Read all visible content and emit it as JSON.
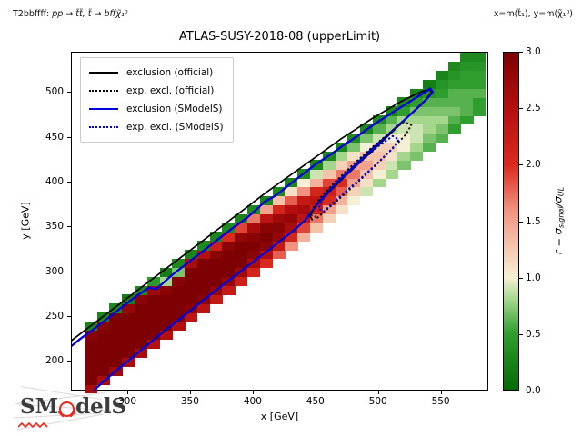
{
  "header": {
    "left_prefix": "T2bbffff: ",
    "left_math": "pp → t̃t̃,  t̃ → bffχ̃₁⁰",
    "right": "x=m(t̃₁), y=m(χ̃₁⁰)"
  },
  "title": "ATLAS-SUSY-2018-08 (upperLimit)",
  "legend": {
    "entries": [
      {
        "label": "exclusion (official)",
        "color": "#000000",
        "style": "solid"
      },
      {
        "label": "exp. excl. (official)",
        "color": "#000000",
        "style": "dotted"
      },
      {
        "label": "exclusion (SModelS)",
        "color": "#0000dd",
        "style": "solid"
      },
      {
        "label": "exp. excl. (SModelS)",
        "color": "#0000dd",
        "style": "dotted"
      }
    ]
  },
  "logo": {
    "text_left": "SM",
    "text_right": "delS",
    "accent_color": "#e8291c",
    "text_color": "#3c3c3c"
  },
  "chart_data": {
    "type": "heatmap",
    "title": "ATLAS-SUSY-2018-08 (upperLimit)",
    "xlabel": "x [GeV]",
    "ylabel": "y [GeV]",
    "xlim": [
      255,
      588
    ],
    "ylim": [
      167,
      545
    ],
    "xticks": [
      300,
      350,
      400,
      450,
      500,
      550
    ],
    "yticks": [
      200,
      250,
      300,
      350,
      400,
      450,
      500
    ],
    "grid": false,
    "legend_position": "upper left",
    "cell_size_gev": 10,
    "colorbar": {
      "range": [
        0.0,
        3.0
      ],
      "ticks": [
        "0.0",
        "0.5",
        "1.0",
        "1.5",
        "2.0",
        "2.5",
        "3.0"
      ],
      "tick_values": [
        0.0,
        0.5,
        1.0,
        1.5,
        2.0,
        2.5,
        3.0
      ],
      "label_parts": {
        "prefix": "r = σ",
        "sub1": "signal",
        "mid": "/σ",
        "sub2": "UL"
      },
      "stops": [
        [
          0.0,
          "#046b04"
        ],
        [
          0.5,
          "#2f9e2f"
        ],
        [
          0.8,
          "#a4d68c"
        ],
        [
          1.0,
          "#f5f0d5"
        ],
        [
          1.3,
          "#f5c2aa"
        ],
        [
          1.6,
          "#f29280"
        ],
        [
          2.0,
          "#da2a1e"
        ],
        [
          2.5,
          "#b40f0f"
        ],
        [
          3.0,
          "#7d0102"
        ]
      ]
    },
    "columns": [
      {
        "x": 270,
        "y0": 170,
        "r": [
          2.6,
          3.0,
          3.0,
          3.0,
          3.0,
          3.0,
          2.9,
          0.25
        ]
      },
      {
        "x": 280,
        "y0": 180,
        "r": [
          2.6,
          3.0,
          3.0,
          3.0,
          3.0,
          3.0,
          2.9,
          0.25
        ]
      },
      {
        "x": 290,
        "y0": 190,
        "r": [
          2.7,
          3.0,
          3.0,
          3.0,
          3.0,
          3.0,
          3.0,
          0.3
        ]
      },
      {
        "x": 300,
        "y0": 200,
        "r": [
          2.6,
          3.0,
          3.0,
          3.0,
          3.0,
          3.0,
          2.8,
          0.2
        ]
      },
      {
        "x": 310,
        "y0": 210,
        "r": [
          2.6,
          3.0,
          3.0,
          3.0,
          3.0,
          3.0,
          2.9,
          0.3
        ]
      },
      {
        "x": 320,
        "y0": 220,
        "r": [
          2.5,
          3.0,
          3.0,
          3.0,
          3.0,
          3.0,
          2.7,
          0.45
        ]
      },
      {
        "x": 330,
        "y0": 230,
        "r": [
          2.5,
          3.0,
          3.0,
          3.0,
          3.0,
          2.9,
          0.8,
          0.2
        ]
      },
      {
        "x": 340,
        "y0": 240,
        "r": [
          2.5,
          3.0,
          3.0,
          3.0,
          3.0,
          2.9,
          0.7,
          0.3
        ]
      },
      {
        "x": 350,
        "y0": 250,
        "r": [
          2.4,
          2.9,
          3.0,
          3.0,
          3.0,
          3.0,
          2.6,
          0.25
        ]
      },
      {
        "x": 360,
        "y0": 260,
        "r": [
          2.4,
          2.9,
          3.0,
          3.0,
          3.0,
          3.0,
          2.5,
          0.3
        ]
      },
      {
        "x": 370,
        "y0": 270,
        "r": [
          2.3,
          2.8,
          3.0,
          3.0,
          3.0,
          2.9,
          2.2,
          0.25
        ]
      },
      {
        "x": 380,
        "y0": 280,
        "r": [
          2.3,
          2.8,
          3.0,
          3.0,
          3.0,
          2.9,
          2.0,
          0.3
        ]
      },
      {
        "x": 390,
        "y0": 290,
        "r": [
          2.2,
          2.7,
          3.0,
          3.0,
          3.0,
          2.8,
          1.9,
          0.25
        ]
      },
      {
        "x": 400,
        "y0": 300,
        "r": [
          2.1,
          2.6,
          2.9,
          3.0,
          2.9,
          2.6,
          1.7,
          0.3
        ]
      },
      {
        "x": 410,
        "y0": 310,
        "r": [
          2.0,
          2.5,
          2.9,
          3.0,
          2.9,
          2.4,
          1.5,
          0.25
        ]
      },
      {
        "x": 420,
        "y0": 320,
        "r": [
          1.8,
          2.3,
          2.8,
          2.9,
          2.7,
          2.1,
          1.3,
          0.3
        ]
      },
      {
        "x": 430,
        "y0": 330,
        "r": [
          1.6,
          2.1,
          2.6,
          2.8,
          2.5,
          1.8,
          1.1,
          0.25
        ]
      },
      {
        "x": 440,
        "y0": 340,
        "r": [
          1.4,
          1.9,
          2.4,
          2.6,
          2.3,
          1.6,
          1.0,
          0.3
        ]
      },
      {
        "x": 450,
        "y0": 350,
        "r": [
          1.3,
          1.7,
          2.2,
          2.4,
          2.1,
          1.4,
          0.9,
          0.25
        ]
      },
      {
        "x": 460,
        "y0": 360,
        "r": [
          1.2,
          1.5,
          2.0,
          2.2,
          1.9,
          1.3,
          0.8,
          0.3
        ]
      },
      {
        "x": 470,
        "y0": 370,
        "r": [
          1.1,
          1.4,
          1.8,
          2.0,
          1.7,
          1.2,
          0.8,
          0.25
        ]
      },
      {
        "x": 480,
        "y0": 380,
        "r": [
          1.0,
          1.2,
          1.5,
          1.7,
          1.5,
          1.1,
          0.7,
          0.3
        ]
      },
      {
        "x": 490,
        "y0": 390,
        "r": [
          0.9,
          1.1,
          1.3,
          1.5,
          1.3,
          1.0,
          0.7,
          0.25
        ]
      },
      {
        "x": 500,
        "y0": 400,
        "r": [
          0.8,
          1.0,
          1.2,
          1.3,
          1.2,
          0.9,
          0.6,
          0.3
        ]
      },
      {
        "x": 510,
        "y0": 410,
        "r": [
          0.8,
          0.9,
          1.1,
          1.2,
          1.0,
          0.8,
          0.6,
          0.25
        ]
      },
      {
        "x": 520,
        "y0": 420,
        "r": [
          0.7,
          0.8,
          1.0,
          1.0,
          0.9,
          0.8,
          0.5,
          0.3
        ]
      },
      {
        "x": 530,
        "y0": 430,
        "r": [
          0.7,
          0.8,
          0.9,
          0.9,
          0.8,
          0.7,
          0.5,
          0.25
        ]
      },
      {
        "x": 540,
        "y0": 440,
        "r": [
          0.6,
          0.7,
          0.8,
          0.8,
          0.7,
          0.6,
          0.4,
          0.2
        ]
      },
      {
        "x": 550,
        "y0": 450,
        "r": [
          0.6,
          0.7,
          0.8,
          0.7,
          0.6,
          0.5,
          0.4,
          0.25
        ]
      },
      {
        "x": 560,
        "y0": 460,
        "r": [
          0.5,
          0.6,
          0.7,
          0.6,
          0.6,
          0.5,
          0.4,
          0.3
        ]
      },
      {
        "x": 570,
        "y0": 470,
        "r": [
          0.5,
          0.6,
          0.6,
          0.6,
          0.5,
          0.5,
          0.4,
          0.3
        ]
      },
      {
        "x": 580,
        "y0": 480,
        "r": [
          0.5,
          0.5,
          0.6,
          0.5,
          0.5,
          0.4,
          0.3
        ]
      }
    ],
    "contours": [
      {
        "name": "exclusion-official",
        "color": "#000000",
        "style": "solid",
        "width": 1.7,
        "points": [
          [
            254,
            223
          ],
          [
            268,
            238
          ],
          [
            284,
            255
          ],
          [
            300,
            272
          ],
          [
            316,
            289
          ],
          [
            332,
            306
          ],
          [
            348,
            323
          ],
          [
            364,
            340
          ],
          [
            380,
            357
          ],
          [
            396,
            374
          ],
          [
            410,
            389
          ],
          [
            422,
            401
          ],
          [
            434,
            413
          ],
          [
            446,
            425
          ],
          [
            458,
            437
          ],
          [
            470,
            449
          ],
          [
            482,
            460
          ],
          [
            494,
            471
          ],
          [
            506,
            481
          ],
          [
            517,
            490
          ],
          [
            527,
            497
          ],
          [
            535,
            502
          ],
          [
            540,
            504
          ],
          [
            542,
            501
          ],
          [
            537,
            492
          ],
          [
            528,
            480
          ],
          [
            517,
            465
          ],
          [
            505,
            449
          ],
          [
            492,
            432
          ],
          [
            479,
            415
          ],
          [
            467,
            399
          ],
          [
            457,
            385
          ],
          [
            449,
            373
          ],
          [
            445,
            363
          ],
          [
            447,
            358
          ]
        ]
      },
      {
        "name": "exclusion-smodels",
        "color": "#0000dd",
        "style": "solid",
        "width": 2.3,
        "points": [
          [
            254,
            217
          ],
          [
            262,
            226
          ],
          [
            272,
            236
          ],
          [
            283,
            248
          ],
          [
            295,
            261
          ],
          [
            307,
            274
          ],
          [
            317,
            283
          ],
          [
            322,
            281
          ],
          [
            327,
            287
          ],
          [
            335,
            297
          ],
          [
            347,
            310
          ],
          [
            359,
            323
          ],
          [
            371,
            336
          ],
          [
            383,
            349
          ],
          [
            394,
            360
          ],
          [
            403,
            371
          ],
          [
            409,
            379
          ],
          [
            417,
            385
          ],
          [
            427,
            396
          ],
          [
            438,
            408
          ],
          [
            450,
            421
          ],
          [
            462,
            432
          ],
          [
            473,
            443
          ],
          [
            484,
            453
          ],
          [
            495,
            464
          ],
          [
            505,
            473
          ],
          [
            514,
            481
          ],
          [
            523,
            489
          ],
          [
            531,
            496
          ],
          [
            537,
            501
          ],
          [
            541,
            505
          ],
          [
            543,
            501
          ],
          [
            538,
            493
          ],
          [
            529,
            481
          ],
          [
            518,
            467
          ],
          [
            506,
            452
          ],
          [
            494,
            437
          ],
          [
            482,
            421
          ],
          [
            470,
            405
          ],
          [
            460,
            391
          ],
          [
            452,
            378
          ],
          [
            446,
            367
          ],
          [
            441,
            358
          ],
          [
            434,
            349
          ],
          [
            424,
            338
          ],
          [
            412,
            325
          ],
          [
            399,
            311
          ],
          [
            386,
            297
          ],
          [
            373,
            283
          ],
          [
            359,
            268
          ],
          [
            345,
            252
          ],
          [
            331,
            237
          ],
          [
            317,
            221
          ],
          [
            303,
            205
          ],
          [
            291,
            191
          ],
          [
            281,
            179
          ],
          [
            274,
            170
          ],
          [
            272,
            166
          ]
        ]
      },
      {
        "name": "expected-exclusion-official",
        "color": "#000000",
        "style": "dotted",
        "width": 1.9,
        "points": [
          [
            451,
            361
          ],
          [
            466,
            379
          ],
          [
            482,
            399
          ],
          [
            498,
            420
          ],
          [
            511,
            438
          ],
          [
            521,
            453
          ],
          [
            526,
            464
          ],
          [
            520,
            468
          ],
          [
            509,
            456
          ],
          [
            495,
            440
          ],
          [
            480,
            421
          ],
          [
            466,
            402
          ],
          [
            455,
            386
          ],
          [
            448,
            373
          ],
          [
            446,
            364
          ],
          [
            451,
            361
          ]
        ]
      },
      {
        "name": "expected-exclusion-smodels",
        "color": "#0000dd",
        "style": "dotted",
        "width": 2.1,
        "points": [
          [
            456,
            368
          ],
          [
            470,
            386
          ],
          [
            485,
            404
          ],
          [
            499,
            422
          ],
          [
            510,
            437
          ],
          [
            516,
            448
          ],
          [
            511,
            452
          ],
          [
            499,
            440
          ],
          [
            486,
            424
          ],
          [
            472,
            406
          ],
          [
            461,
            391
          ],
          [
            454,
            379
          ],
          [
            452,
            371
          ],
          [
            456,
            368
          ]
        ]
      }
    ]
  }
}
